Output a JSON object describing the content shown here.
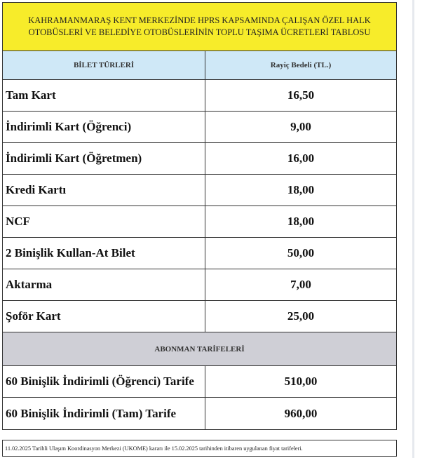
{
  "title": "KAHRAMANMARAŞ KENT MERKEZİNDE HPRS KAPSAMINDA ÇALIŞAN ÖZEL HALK OTOBÜSLERİ VE BELEDİYE OTOBÜSLERİNİN TOPLU TAŞIMA ÜCRETLERİ TABLOSU",
  "header": {
    "col1": "BİLET TÜRLERİ",
    "col2": "Rayiç Bedeli (TL.)"
  },
  "rows": [
    {
      "name": "Tam Kart",
      "price": "16,50"
    },
    {
      "name": "İndirimli Kart (Öğrenci)",
      "price": "9,00"
    },
    {
      "name": "İndirimli Kart (Öğretmen)",
      "price": "16,00"
    },
    {
      "name": "Kredi Kartı",
      "price": "18,00"
    },
    {
      "name": "NCF",
      "price": "18,00"
    },
    {
      "name": "2 Binişlik Kullan-At Bilet",
      "price": "50,00"
    },
    {
      "name": "Aktarma",
      "price": "7,00"
    },
    {
      "name": "Şoför Kart",
      "price": "25,00"
    }
  ],
  "subscription": {
    "heading": "ABONMAN TARİFELERİ",
    "rows": [
      {
        "name": "60 Binişlik İndirimli (Öğrenci) Tarife",
        "price": "510,00"
      },
      {
        "name": "60 Binişlik İndirimli (Tam) Tarife",
        "price": "960,00"
      }
    ]
  },
  "footer": "11.02.2025 Tarihli Ulaşım Koordinasyon Merkezi (UKOME) kararı ile 15.02.2025 tarihinden itibaren uygulanan fiyat tarifeleri.",
  "colors": {
    "title_bg": "#f7ec2a",
    "header_bg": "#cfe8f7",
    "subscription_bg": "#cfcfd6"
  }
}
